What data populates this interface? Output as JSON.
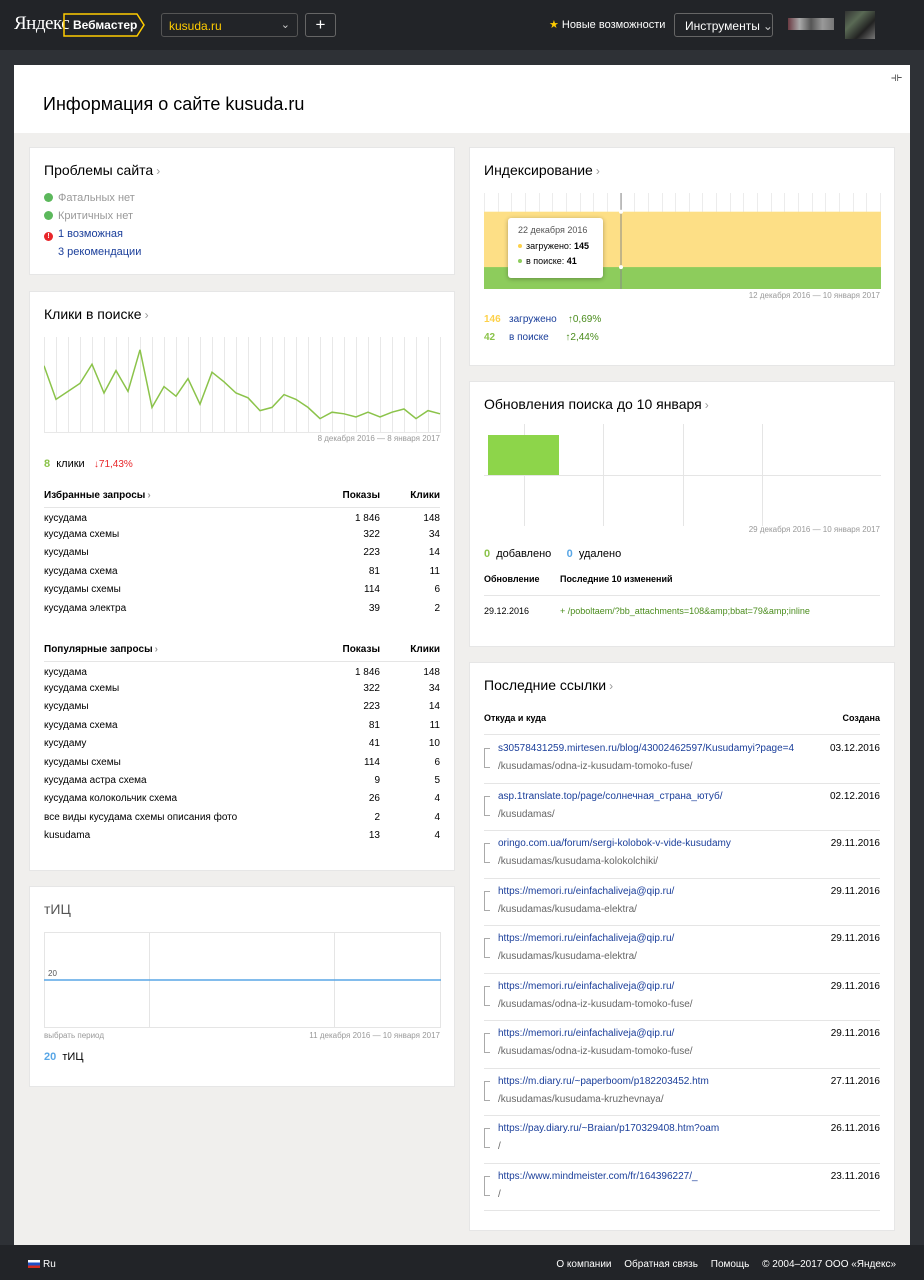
{
  "header": {
    "logo": "Яндекс",
    "product": "Вебмастер",
    "site": "kusuda.ru",
    "add_label": "+",
    "new_features": "Новые возможности",
    "tools": "Инструменты"
  },
  "page": {
    "title": "Информация о сайте kusuda.ru"
  },
  "problems": {
    "title": "Проблемы сайта",
    "fatal": "Фатальных нет",
    "critical": "Критичных нет",
    "possible": "1 возможная",
    "recommendations": "3 рекомендации",
    "colors": {
      "ok": "#5cb85c",
      "error": "#e8262a"
    }
  },
  "clicks": {
    "title": "Клики в поиске",
    "period": "8 декабря 2016 — 8 января 2017",
    "count": "8",
    "label": "клики",
    "change": "↓71,43%",
    "fav_header": {
      "name": "Избранные запросы",
      "shows": "Показы",
      "clicks": "Клики"
    },
    "fav": [
      [
        "кусудама",
        "1 846",
        "148"
      ],
      [
        "кусудама схемы",
        "322",
        "34"
      ],
      [
        "кусудамы",
        "223",
        "14"
      ],
      [
        "кусудама схема",
        "81",
        "11"
      ],
      [
        "кусудамы схемы",
        "114",
        "6"
      ],
      [
        "кусудама электра",
        "39",
        "2"
      ]
    ],
    "pop_header": {
      "name": "Популярные запросы",
      "shows": "Показы",
      "clicks": "Клики"
    },
    "pop": [
      [
        "кусудама",
        "1 846",
        "148"
      ],
      [
        "кусудама схемы",
        "322",
        "34"
      ],
      [
        "кусудамы",
        "223",
        "14"
      ],
      [
        "кусудама схема",
        "81",
        "11"
      ],
      [
        "кусудаму",
        "41",
        "10"
      ],
      [
        "кусудамы схемы",
        "114",
        "6"
      ],
      [
        "кусудама астра схема",
        "9",
        "5"
      ],
      [
        "кусудама колокольчик схема",
        "26",
        "4"
      ],
      [
        "все виды кусудама схемы описания фото",
        "2",
        "4"
      ],
      [
        "kusudama",
        "13",
        "4"
      ]
    ]
  },
  "chart_data": [
    {
      "type": "line",
      "title": "Клики в поиске",
      "series": [
        {
          "values": [
            42,
            21,
            26,
            31,
            43,
            25,
            39,
            26,
            52,
            16,
            29,
            23,
            34,
            18,
            38,
            32,
            25,
            22,
            14,
            16,
            24,
            21,
            16,
            9,
            13,
            12,
            10,
            13,
            10,
            13,
            15,
            9,
            14,
            12
          ]
        }
      ],
      "ylim": [
        0,
        60
      ]
    },
    {
      "type": "area",
      "title": "Индексирование",
      "series": [
        {
          "name": "загружено",
          "values": [
            145,
            145,
            146
          ]
        },
        {
          "name": "в поиске",
          "values": [
            41,
            41,
            42
          ]
        }
      ],
      "ylim": [
        0,
        180
      ]
    },
    {
      "type": "bar",
      "title": "Обновления поиска до 10 января",
      "values": [
        1,
        0,
        0,
        0,
        0
      ]
    },
    {
      "type": "line",
      "title": "тИЦ",
      "series": [
        {
          "values": [
            20,
            20
          ]
        }
      ],
      "ylim": [
        0,
        40
      ]
    }
  ],
  "tic": {
    "title": "тИЦ",
    "value_label": "20",
    "choose_period": "выбрать период",
    "period": "11 декабря 2016 — 10 января 2017",
    "count": "20",
    "label": "тИЦ"
  },
  "indexing": {
    "title": "Индексирование",
    "tooltip_date": "22 декабря 2016",
    "tooltip_loaded_label": "загружено:",
    "tooltip_loaded": "145",
    "tooltip_search_label": "в поиске:",
    "tooltip_search": "41",
    "period": "12 декабря 2016 — 10 января 2017",
    "loaded_count": "146",
    "loaded_label": "загружено",
    "loaded_change": "↑0,69%",
    "search_count": "42",
    "search_label": "в поиске",
    "search_change": "↑2,44%",
    "colors": {
      "loaded": "#fddf86",
      "search": "#8dcc5c"
    }
  },
  "updates": {
    "title": "Обновления поиска до 10 января",
    "period": "29 декабря 2016 — 10 января 2017",
    "added_count": "0",
    "added_label": "добавлено",
    "removed_count": "0",
    "removed_label": "удалено",
    "col_update": "Обновление",
    "col_changes": "Последние 10 изменений",
    "row_date": "29.12.2016",
    "row_change": "+ /poboltaem/?bb_attachments=108&amp;bbat=79&amp;inline"
  },
  "links": {
    "title": "Последние ссылки",
    "col_from": "Откуда и куда",
    "col_created": "Создана",
    "rows": [
      {
        "src": "s30578431259.mirtesen.ru/blog/43002462597/Kusudamyi?page=4",
        "dst": "/kusudamas/odna-iz-kusudam-tomoko-fuse/",
        "date": "03.12.2016"
      },
      {
        "src": "asp.1translate.top/page/солнечная_страна_ютуб/",
        "dst": "/kusudamas/",
        "date": "02.12.2016"
      },
      {
        "src": "oringo.com.ua/forum/sergi-kolobok-v-vide-kusudamy",
        "dst": "/kusudamas/kusudama-kolokolchiki/",
        "date": "29.11.2016"
      },
      {
        "src": "https://memori.ru/einfachaliveja@qip.ru/",
        "dst": "/kusudamas/kusudama-elektra/",
        "date": "29.11.2016"
      },
      {
        "src": "https://memori.ru/einfachaliveja@qip.ru/",
        "dst": "/kusudamas/kusudama-elektra/",
        "date": "29.11.2016"
      },
      {
        "src": "https://memori.ru/einfachaliveja@qip.ru/",
        "dst": "/kusudamas/odna-iz-kusudam-tomoko-fuse/",
        "date": "29.11.2016"
      },
      {
        "src": "https://memori.ru/einfachaliveja@qip.ru/",
        "dst": "/kusudamas/odna-iz-kusudam-tomoko-fuse/",
        "date": "29.11.2016"
      },
      {
        "src": "https://m.diary.ru/~paperboom/p182203452.htm",
        "dst": "/kusudamas/kusudama-kruzhevnaya/",
        "date": "27.11.2016"
      },
      {
        "src": "https://pay.diary.ru/~Braian/p170329408.htm?oam",
        "dst": "/",
        "date": "26.11.2016"
      },
      {
        "src": "https://www.mindmeister.com/fr/164396227/_",
        "dst": "/",
        "date": "23.11.2016"
      }
    ]
  },
  "footer": {
    "lang": "Ru",
    "about": "О компании",
    "feedback": "Обратная связь",
    "help": "Помощь",
    "copyright": "© 2004–2017  ООО «Яндекс»"
  }
}
